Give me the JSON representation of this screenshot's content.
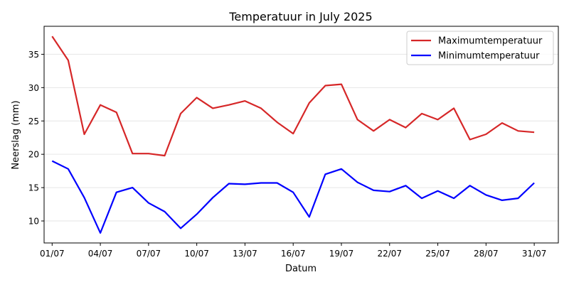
{
  "chart_data": {
    "type": "line",
    "title": "Temperatuur in July 2025",
    "xlabel": "Datum",
    "ylabel": "Neerslag (mm)",
    "x": [
      "01/07",
      "02/07",
      "03/07",
      "04/07",
      "05/07",
      "06/07",
      "07/07",
      "08/07",
      "09/07",
      "10/07",
      "11/07",
      "12/07",
      "13/07",
      "14/07",
      "15/07",
      "16/07",
      "17/07",
      "18/07",
      "19/07",
      "20/07",
      "21/07",
      "22/07",
      "23/07",
      "24/07",
      "25/07",
      "26/07",
      "27/07",
      "28/07",
      "29/07",
      "30/07",
      "31/07"
    ],
    "xticks": [
      "01/07",
      "04/07",
      "07/07",
      "10/07",
      "13/07",
      "16/07",
      "19/07",
      "22/07",
      "25/07",
      "28/07",
      "31/07"
    ],
    "yticks": [
      10,
      15,
      20,
      25,
      30,
      35
    ],
    "ylim": [
      6.7,
      39.2
    ],
    "grid": "horizontal",
    "legend": "top-right",
    "series": [
      {
        "name": "Maximumtemperatuur",
        "color": "#d62728",
        "values": [
          37.7,
          34.1,
          23.0,
          27.4,
          26.3,
          20.1,
          20.1,
          19.8,
          26.1,
          28.5,
          26.9,
          27.4,
          28.0,
          26.9,
          24.8,
          23.1,
          27.7,
          30.3,
          30.5,
          25.2,
          23.5,
          25.2,
          24.0,
          26.1,
          25.2,
          26.9,
          22.2,
          23.0,
          24.7,
          23.5,
          23.3
        ]
      },
      {
        "name": "Minimumtemperatuur",
        "color": "#0000ff",
        "values": [
          19.0,
          17.8,
          13.5,
          8.2,
          14.3,
          15.0,
          12.7,
          11.4,
          8.9,
          11.0,
          13.5,
          15.6,
          15.5,
          15.7,
          15.7,
          14.3,
          10.6,
          17.0,
          17.8,
          15.8,
          14.6,
          14.4,
          15.3,
          13.4,
          14.5,
          13.4,
          15.3,
          13.9,
          13.1,
          13.4,
          15.7
        ]
      }
    ]
  }
}
